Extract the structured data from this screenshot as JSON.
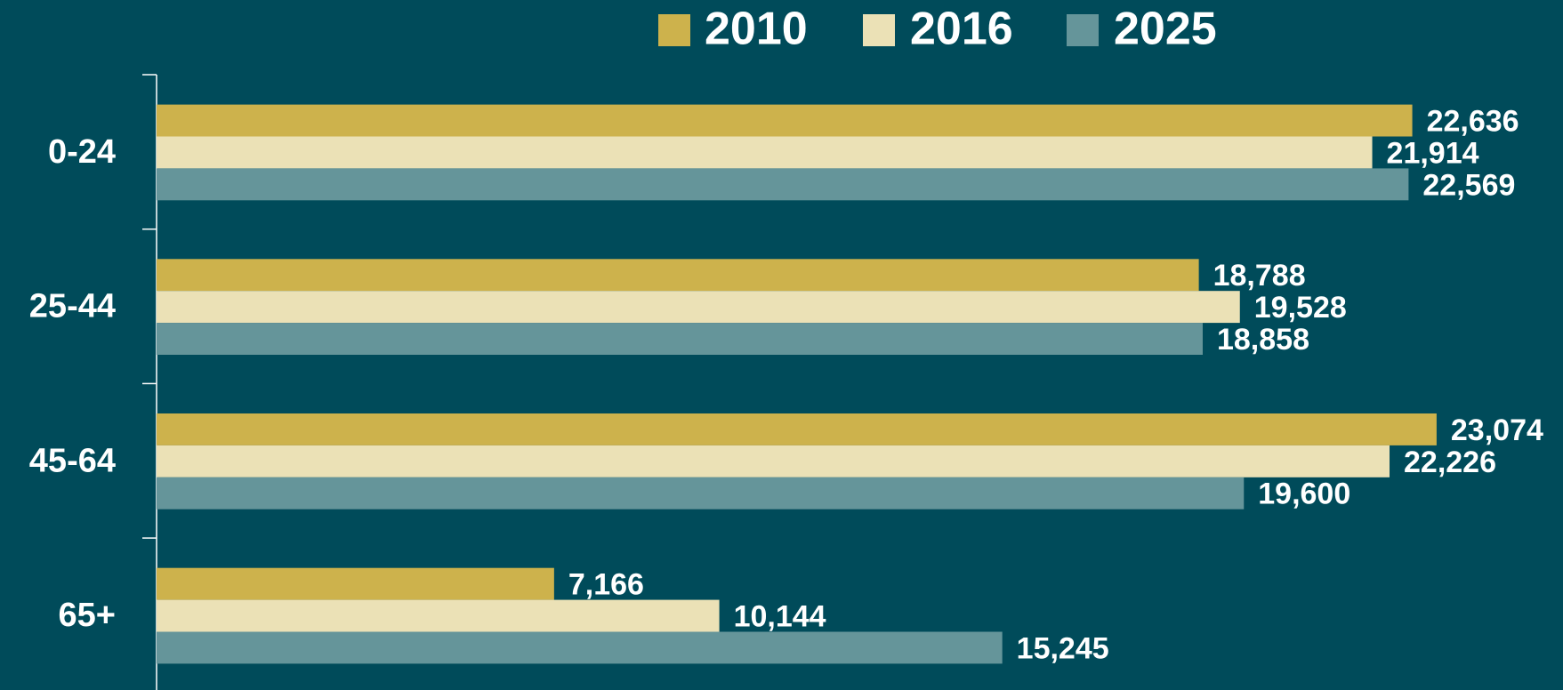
{
  "chart_data": {
    "type": "bar",
    "orientation": "horizontal",
    "categories": [
      "0-24",
      "25-44",
      "45-64",
      "65+"
    ],
    "series": [
      {
        "name": "2010",
        "color": "#cdb24c",
        "values": [
          22636,
          18788,
          23074,
          7166
        ],
        "value_labels": [
          "22,636",
          "18,788",
          "23,074",
          "7,166"
        ]
      },
      {
        "name": "2016",
        "color": "#ebe1b6",
        "values": [
          21914,
          19528,
          22226,
          10144
        ],
        "value_labels": [
          "21,914",
          "19,528",
          "22,226",
          "10,144"
        ]
      },
      {
        "name": "2025",
        "color": "#65959a",
        "values": [
          22569,
          18858,
          19600,
          15245
        ],
        "value_labels": [
          "22,569",
          "18,858",
          "19,600",
          "15,245"
        ]
      }
    ],
    "xlim": [
      0,
      25000
    ],
    "legend": "top"
  }
}
